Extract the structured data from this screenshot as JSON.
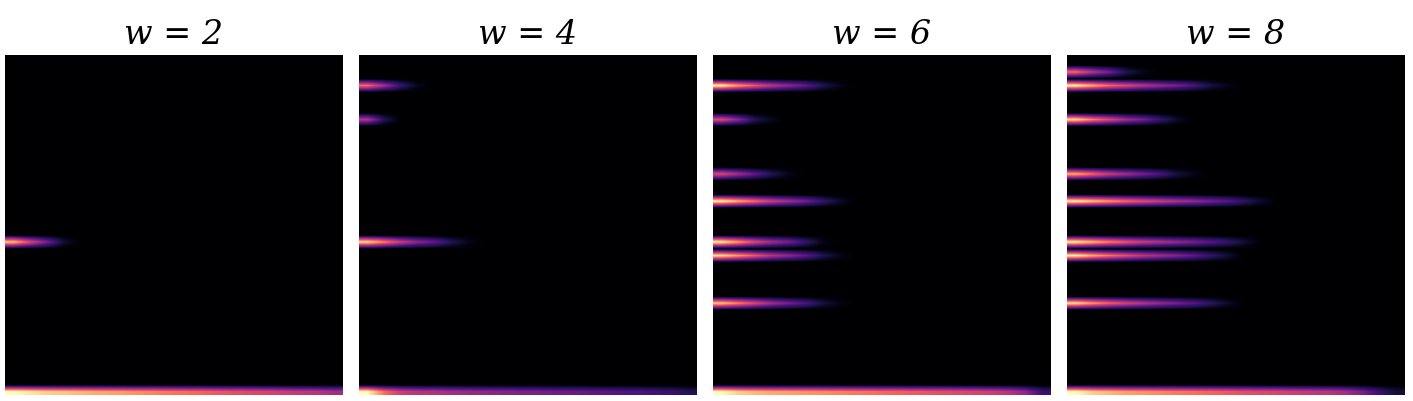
{
  "chart_data": [
    {
      "type": "heatmap",
      "title": "w = 2",
      "tick_labels": false,
      "shape": [
        50,
        20
      ],
      "value_range": [
        0,
        1
      ],
      "cells": [
        {
          "row": 27,
          "values": [
            0.9,
            0.6,
            0.35,
            0.1,
            0,
            0,
            0,
            0,
            0,
            0,
            0,
            0,
            0,
            0,
            0,
            0,
            0,
            0,
            0,
            0
          ]
        },
        {
          "row": 49,
          "values": [
            1.0,
            0.95,
            0.9,
            0.88,
            0.85,
            0.82,
            0.8,
            0.78,
            0.75,
            0.72,
            0.7,
            0.68,
            0.65,
            0.62,
            0.6,
            0.58,
            0.55,
            0.52,
            0.5,
            0.45
          ]
        }
      ]
    },
    {
      "type": "heatmap",
      "title": "w = 4",
      "tick_labels": false,
      "shape": [
        50,
        20
      ],
      "value_range": [
        0,
        1
      ],
      "cells": [
        {
          "row": 4,
          "values": [
            0.7,
            0.45,
            0.2,
            0.05,
            0,
            0,
            0,
            0,
            0,
            0,
            0,
            0,
            0,
            0,
            0,
            0,
            0,
            0,
            0,
            0
          ]
        },
        {
          "row": 9,
          "values": [
            0.5,
            0.15,
            0,
            0,
            0,
            0,
            0,
            0,
            0,
            0,
            0,
            0,
            0,
            0,
            0,
            0,
            0,
            0,
            0,
            0
          ]
        },
        {
          "row": 27,
          "values": [
            0.95,
            0.75,
            0.55,
            0.4,
            0.3,
            0.15,
            0.05,
            0,
            0,
            0,
            0,
            0,
            0,
            0,
            0,
            0,
            0,
            0,
            0,
            0
          ]
        },
        {
          "row": 49,
          "values": [
            1.0,
            0.7,
            0.55,
            0.5,
            0.48,
            0.45,
            0.42,
            0.4,
            0.38,
            0.36,
            0.35,
            0.33,
            0.32,
            0.3,
            0.28,
            0.26,
            0.25,
            0.22,
            0.2,
            0.15
          ]
        }
      ]
    },
    {
      "type": "heatmap",
      "title": "w = 6",
      "tick_labels": false,
      "shape": [
        50,
        20
      ],
      "value_range": [
        0,
        1
      ],
      "cells": [
        {
          "row": 4,
          "values": [
            1.0,
            0.8,
            0.65,
            0.5,
            0.4,
            0.3,
            0.15,
            0.05,
            0,
            0,
            0,
            0,
            0,
            0,
            0,
            0,
            0,
            0,
            0,
            0
          ]
        },
        {
          "row": 9,
          "values": [
            0.6,
            0.4,
            0.15,
            0.05,
            0,
            0,
            0,
            0,
            0,
            0,
            0,
            0,
            0,
            0,
            0,
            0,
            0,
            0,
            0,
            0
          ]
        },
        {
          "row": 17,
          "values": [
            0.6,
            0.45,
            0.3,
            0.15,
            0.05,
            0,
            0,
            0,
            0,
            0,
            0,
            0,
            0,
            0,
            0,
            0,
            0,
            0,
            0,
            0
          ]
        },
        {
          "row": 21,
          "values": [
            1.0,
            0.85,
            0.7,
            0.55,
            0.45,
            0.35,
            0.2,
            0.08,
            0,
            0,
            0,
            0,
            0,
            0,
            0,
            0,
            0,
            0,
            0,
            0
          ]
        },
        {
          "row": 27,
          "values": [
            1.0,
            0.8,
            0.6,
            0.45,
            0.35,
            0.2,
            0.05,
            0,
            0,
            0,
            0,
            0,
            0,
            0,
            0,
            0,
            0,
            0,
            0,
            0
          ]
        },
        {
          "row": 29,
          "values": [
            0.95,
            0.8,
            0.65,
            0.5,
            0.4,
            0.3,
            0.15,
            0.05,
            0,
            0,
            0,
            0,
            0,
            0,
            0,
            0,
            0,
            0,
            0,
            0
          ]
        },
        {
          "row": 36,
          "values": [
            0.9,
            0.75,
            0.6,
            0.45,
            0.35,
            0.25,
            0.12,
            0.04,
            0,
            0,
            0,
            0,
            0,
            0,
            0,
            0,
            0,
            0,
            0,
            0
          ]
        },
        {
          "row": 49,
          "values": [
            1.0,
            0.9,
            0.85,
            0.82,
            0.8,
            0.78,
            0.76,
            0.74,
            0.72,
            0.7,
            0.68,
            0.66,
            0.64,
            0.62,
            0.6,
            0.58,
            0.55,
            0.5,
            0.4,
            0.2
          ]
        }
      ]
    },
    {
      "type": "heatmap",
      "title": "w = 8",
      "tick_labels": false,
      "shape": [
        50,
        20
      ],
      "value_range": [
        0,
        1
      ],
      "cells": [
        {
          "row": 2,
          "values": [
            0.7,
            0.5,
            0.35,
            0.15,
            0.05,
            0,
            0,
            0,
            0,
            0,
            0,
            0,
            0,
            0,
            0,
            0,
            0,
            0,
            0,
            0
          ]
        },
        {
          "row": 4,
          "values": [
            1.0,
            0.85,
            0.7,
            0.6,
            0.5,
            0.42,
            0.35,
            0.25,
            0.12,
            0.05,
            0,
            0,
            0,
            0,
            0,
            0,
            0,
            0,
            0,
            0
          ]
        },
        {
          "row": 9,
          "values": [
            0.95,
            0.75,
            0.6,
            0.45,
            0.35,
            0.2,
            0.08,
            0,
            0,
            0,
            0,
            0,
            0,
            0,
            0,
            0,
            0,
            0,
            0,
            0
          ]
        },
        {
          "row": 17,
          "values": [
            0.85,
            0.7,
            0.55,
            0.45,
            0.35,
            0.25,
            0.12,
            0.05,
            0,
            0,
            0,
            0,
            0,
            0,
            0,
            0,
            0,
            0,
            0,
            0
          ]
        },
        {
          "row": 21,
          "values": [
            1.0,
            0.9,
            0.8,
            0.7,
            0.62,
            0.55,
            0.48,
            0.42,
            0.35,
            0.28,
            0.18,
            0.08,
            0,
            0,
            0,
            0,
            0,
            0,
            0,
            0
          ]
        },
        {
          "row": 27,
          "values": [
            1.0,
            0.88,
            0.75,
            0.65,
            0.55,
            0.48,
            0.42,
            0.35,
            0.28,
            0.2,
            0.1,
            0,
            0,
            0,
            0,
            0,
            0,
            0,
            0,
            0
          ]
        },
        {
          "row": 29,
          "values": [
            1.0,
            0.85,
            0.72,
            0.62,
            0.52,
            0.45,
            0.38,
            0.3,
            0.2,
            0.1,
            0,
            0,
            0,
            0,
            0,
            0,
            0,
            0,
            0,
            0
          ]
        },
        {
          "row": 36,
          "values": [
            0.95,
            0.8,
            0.68,
            0.58,
            0.5,
            0.42,
            0.35,
            0.28,
            0.18,
            0.08,
            0,
            0,
            0,
            0,
            0,
            0,
            0,
            0,
            0,
            0
          ]
        },
        {
          "row": 49,
          "values": [
            1.0,
            0.9,
            0.85,
            0.8,
            0.78,
            0.75,
            0.72,
            0.7,
            0.68,
            0.65,
            0.62,
            0.6,
            0.58,
            0.55,
            0.52,
            0.5,
            0.45,
            0.35,
            0.2,
            0.1
          ]
        }
      ]
    }
  ]
}
